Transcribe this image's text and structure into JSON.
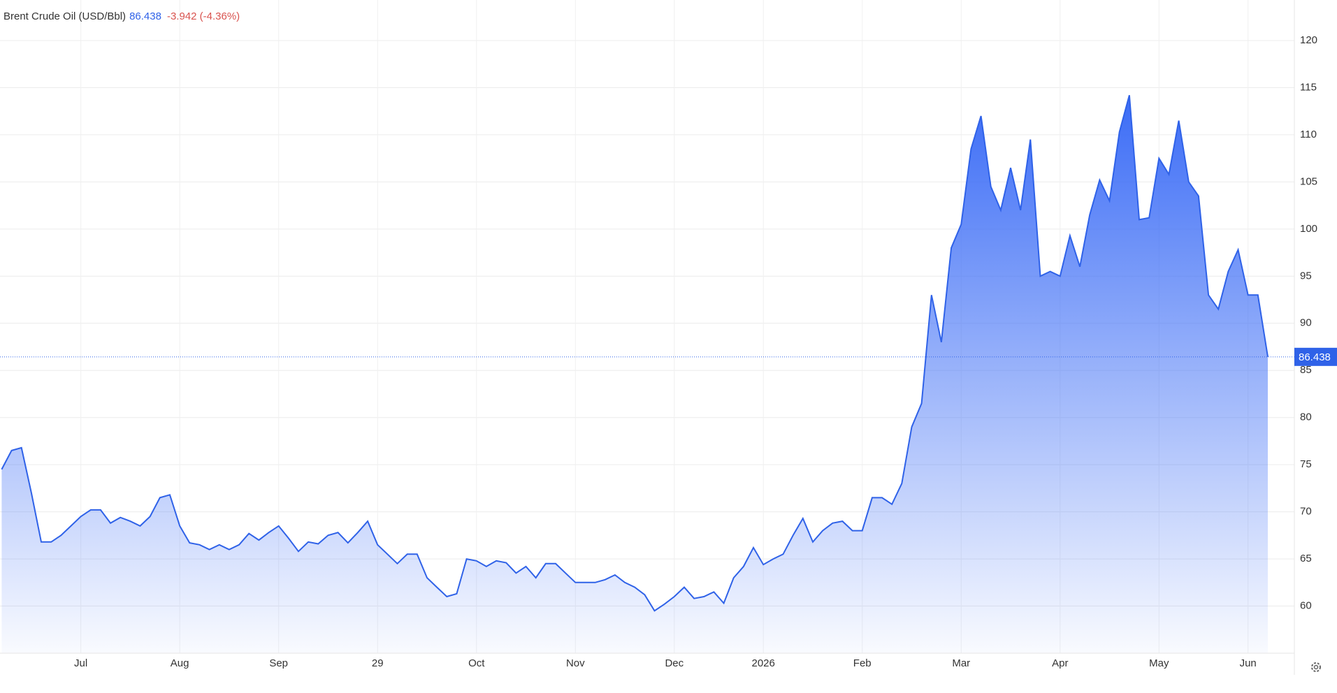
{
  "chart_data": {
    "type": "area",
    "title": "Brent Crude Oil (USD/Bbl)",
    "change": "-3.942 (-4.36%)",
    "color": "#2f62e8",
    "categories": [
      null,
      null,
      null,
      null,
      null,
      null,
      null,
      null,
      "Jul",
      null,
      null,
      null,
      null,
      null,
      null,
      null,
      null,
      null,
      "Aug",
      null,
      null,
      null,
      null,
      null,
      null,
      null,
      null,
      null,
      "Sep",
      null,
      null,
      null,
      null,
      null,
      null,
      null,
      null,
      null,
      "29",
      null,
      null,
      null,
      null,
      null,
      null,
      null,
      null,
      null,
      "Oct",
      null,
      null,
      null,
      null,
      null,
      null,
      null,
      null,
      null,
      "Nov",
      null,
      null,
      null,
      null,
      null,
      null,
      null,
      null,
      null,
      "Dec",
      null,
      null,
      null,
      null,
      null,
      null,
      null,
      null,
      "2026",
      null,
      null,
      null,
      null,
      null,
      null,
      null,
      null,
      null,
      "Feb",
      null,
      null,
      null,
      null,
      null,
      null,
      null,
      null,
      null,
      "Mar",
      null,
      null,
      null,
      null,
      null,
      null,
      null,
      null,
      null,
      "Apr",
      null,
      null,
      null,
      null,
      null,
      null,
      null,
      null,
      null,
      "May",
      null,
      null,
      null,
      null,
      null,
      null,
      null,
      null,
      "Jun",
      null,
      null
    ],
    "values": [
      74.5,
      76.5,
      76.8,
      72,
      66.8,
      66.8,
      67.5,
      68.5,
      69.5,
      70.2,
      70.2,
      68.8,
      69.4,
      69,
      68.5,
      69.5,
      71.5,
      71.8,
      68.5,
      66.7,
      66.5,
      66,
      66.5,
      66,
      66.5,
      67.7,
      67,
      67.8,
      68.5,
      67.2,
      65.8,
      66.8,
      66.6,
      67.5,
      67.8,
      66.7,
      67.8,
      69,
      66.5,
      65.5,
      64.5,
      65.5,
      65.5,
      63,
      62,
      61,
      61.3,
      65,
      64.8,
      64.2,
      64.8,
      64.6,
      63.5,
      64.2,
      63,
      64.5,
      64.5,
      63.5,
      62.5,
      62.5,
      62.5,
      62.8,
      63.3,
      62.5,
      62,
      61.2,
      59.5,
      60.2,
      61,
      62,
      60.8,
      61,
      61.5,
      60.3,
      63,
      64.2,
      66.2,
      64.4,
      65,
      65.5,
      67.5,
      69.3,
      66.8,
      68,
      68.8,
      69,
      68,
      68,
      71.5,
      71.5,
      70.8,
      73,
      79,
      81.5,
      93,
      88,
      98,
      100.5,
      108.5,
      112,
      104.5,
      102,
      106.5,
      102,
      109.5,
      95,
      95.5,
      95,
      99.3,
      96,
      101.5,
      105.2,
      103,
      110.3,
      114.2,
      101,
      101.2,
      107.5,
      105.8,
      111.5,
      105,
      103.5,
      93,
      91.5,
      95.5,
      97.8,
      93,
      93,
      86.438
    ],
    "ylim": [
      55,
      124.3
    ],
    "yticks": [
      60,
      65,
      70,
      75,
      80,
      85,
      90,
      95,
      100,
      105,
      110,
      115,
      120
    ],
    "grid": true
  }
}
